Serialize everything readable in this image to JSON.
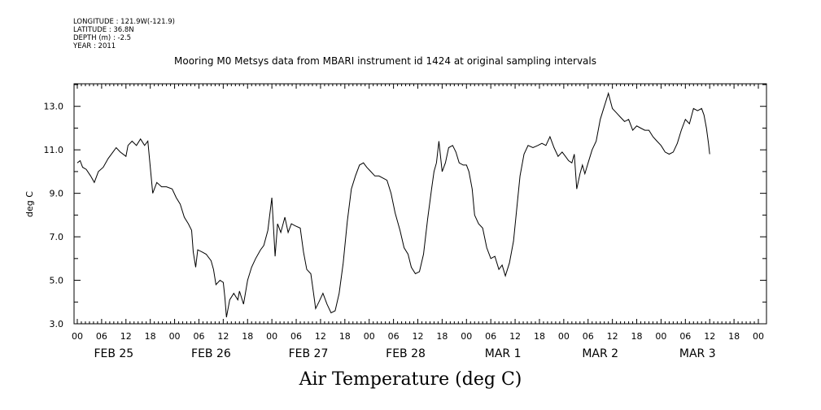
{
  "meta": {
    "longitude": "LONGITUDE : 121.9W(-121.9)",
    "latitude": "LATITUDE : 36.8N",
    "depth": "DEPTH (m) : -2.5",
    "year": "YEAR : 2011"
  },
  "title": "Mooring M0 Metsys data from MBARI instrument id 1424 at original sampling intervals",
  "bottom_title": "Air Temperature (deg C)",
  "chart_data": {
    "type": "line",
    "title": "Mooring M0 Metsys data from MBARI instrument id 1424 at original sampling intervals",
    "xlabel": "",
    "ylabel": "deg C",
    "ylim": [
      3.0,
      14.0
    ],
    "yticks": [
      "3.0",
      "5.0",
      "7.0",
      "9.0",
      "11.0",
      "13.0"
    ],
    "xlim_hours": [
      0,
      168
    ],
    "x_unit": "hours since 2011-02-25 00:00",
    "xtick_hour_labels": [
      "00",
      "06",
      "12",
      "18",
      "00",
      "06",
      "12",
      "18",
      "00",
      "06",
      "12",
      "18",
      "00",
      "06",
      "12",
      "18",
      "00",
      "06",
      "12",
      "18",
      "00",
      "06",
      "12",
      "18",
      "00",
      "06",
      "12",
      "18",
      "00"
    ],
    "date_labels": [
      "FEB 25",
      "FEB 26",
      "FEB 27",
      "FEB 28",
      "MAR 1",
      "MAR 2",
      "MAR 3"
    ],
    "grid": false,
    "series": [
      {
        "values": [
          [
            0,
            10.4
          ],
          [
            0.7,
            10.5
          ],
          [
            1.3,
            10.2
          ],
          [
            2.2,
            10.1
          ],
          [
            3.3,
            9.8
          ],
          [
            4.2,
            9.5
          ],
          [
            5.2,
            10.0
          ],
          [
            6.4,
            10.2
          ],
          [
            7.6,
            10.6
          ],
          [
            8.8,
            10.9
          ],
          [
            9.6,
            11.1
          ],
          [
            10.6,
            10.9
          ],
          [
            12.0,
            10.7
          ],
          [
            12.5,
            11.2
          ],
          [
            13.5,
            11.4
          ],
          [
            14.6,
            11.2
          ],
          [
            15.6,
            11.5
          ],
          [
            16.6,
            11.2
          ],
          [
            17.4,
            11.4
          ],
          [
            18.0,
            10.2
          ],
          [
            18.6,
            9.0
          ],
          [
            19.6,
            9.5
          ],
          [
            20.8,
            9.3
          ],
          [
            22.0,
            9.3
          ],
          [
            23.4,
            9.2
          ],
          [
            24.4,
            8.8
          ],
          [
            25.4,
            8.5
          ],
          [
            26.4,
            7.9
          ],
          [
            27.4,
            7.6
          ],
          [
            28.2,
            7.3
          ],
          [
            28.6,
            6.3
          ],
          [
            29.2,
            5.6
          ],
          [
            29.7,
            6.4
          ],
          [
            30.8,
            6.3
          ],
          [
            31.8,
            6.2
          ],
          [
            33.0,
            5.9
          ],
          [
            33.6,
            5.5
          ],
          [
            34.2,
            4.8
          ],
          [
            35.2,
            5.0
          ],
          [
            36.0,
            4.9
          ],
          [
            36.4,
            4.2
          ],
          [
            36.8,
            3.3
          ],
          [
            37.6,
            4.1
          ],
          [
            38.6,
            4.4
          ],
          [
            39.6,
            4.1
          ],
          [
            40.0,
            4.5
          ],
          [
            41.0,
            3.9
          ],
          [
            42.0,
            5.0
          ],
          [
            43.0,
            5.6
          ],
          [
            44.0,
            6.0
          ],
          [
            45.2,
            6.4
          ],
          [
            46.0,
            6.6
          ],
          [
            47.0,
            7.3
          ],
          [
            48.0,
            8.8
          ],
          [
            48.8,
            6.1
          ],
          [
            49.4,
            7.6
          ],
          [
            50.2,
            7.2
          ],
          [
            51.2,
            7.9
          ],
          [
            52.0,
            7.2
          ],
          [
            52.8,
            7.6
          ],
          [
            53.8,
            7.5
          ],
          [
            55.0,
            7.4
          ],
          [
            55.8,
            6.3
          ],
          [
            56.6,
            5.5
          ],
          [
            57.6,
            5.3
          ],
          [
            58.2,
            4.5
          ],
          [
            58.8,
            3.7
          ],
          [
            59.6,
            4.0
          ],
          [
            60.6,
            4.4
          ],
          [
            61.6,
            3.9
          ],
          [
            62.6,
            3.5
          ],
          [
            63.6,
            3.6
          ],
          [
            64.6,
            4.4
          ],
          [
            65.6,
            5.8
          ],
          [
            66.6,
            7.7
          ],
          [
            67.6,
            9.2
          ],
          [
            68.6,
            9.8
          ],
          [
            69.6,
            10.3
          ],
          [
            70.6,
            10.4
          ],
          [
            71.4,
            10.2
          ],
          [
            72.4,
            10.0
          ],
          [
            73.4,
            9.8
          ],
          [
            74.4,
            9.8
          ],
          [
            75.4,
            9.7
          ],
          [
            76.4,
            9.6
          ],
          [
            77.4,
            9.0
          ],
          [
            78.4,
            8.1
          ],
          [
            79.6,
            7.3
          ],
          [
            80.6,
            6.5
          ],
          [
            81.6,
            6.2
          ],
          [
            82.4,
            5.6
          ],
          [
            83.4,
            5.3
          ],
          [
            84.4,
            5.4
          ],
          [
            85.4,
            6.2
          ],
          [
            86.4,
            7.8
          ],
          [
            87.4,
            9.2
          ],
          [
            88.0,
            10.0
          ],
          [
            88.6,
            10.4
          ],
          [
            89.2,
            11.4
          ],
          [
            90.0,
            10.0
          ],
          [
            90.8,
            10.4
          ],
          [
            91.6,
            11.1
          ],
          [
            92.6,
            11.2
          ],
          [
            93.4,
            10.9
          ],
          [
            94.2,
            10.4
          ],
          [
            95.2,
            10.3
          ],
          [
            96.0,
            10.3
          ],
          [
            96.6,
            10.0
          ],
          [
            97.4,
            9.2
          ],
          [
            98.0,
            8.0
          ],
          [
            99.0,
            7.6
          ],
          [
            100.0,
            7.4
          ],
          [
            101.0,
            6.5
          ],
          [
            102.0,
            6.0
          ],
          [
            103.0,
            6.1
          ],
          [
            104.0,
            5.5
          ],
          [
            104.8,
            5.7
          ],
          [
            105.6,
            5.2
          ],
          [
            106.6,
            5.8
          ],
          [
            107.6,
            6.8
          ],
          [
            108.4,
            8.3
          ],
          [
            109.2,
            9.8
          ],
          [
            110.2,
            10.8
          ],
          [
            111.2,
            11.2
          ],
          [
            112.4,
            11.1
          ],
          [
            113.6,
            11.2
          ],
          [
            114.6,
            11.3
          ],
          [
            115.6,
            11.2
          ],
          [
            116.6,
            11.6
          ],
          [
            117.6,
            11.1
          ],
          [
            118.6,
            10.7
          ],
          [
            119.6,
            10.9
          ],
          [
            120.4,
            10.7
          ],
          [
            121.2,
            10.5
          ],
          [
            122.0,
            10.4
          ],
          [
            122.6,
            10.8
          ],
          [
            123.2,
            9.2
          ],
          [
            124.0,
            9.9
          ],
          [
            124.6,
            10.3
          ],
          [
            125.2,
            9.9
          ],
          [
            126.0,
            10.4
          ],
          [
            127.0,
            11.0
          ],
          [
            128.0,
            11.4
          ],
          [
            129.0,
            12.4
          ],
          [
            130.0,
            13.0
          ],
          [
            131.0,
            13.6
          ],
          [
            132.0,
            12.9
          ],
          [
            133.0,
            12.7
          ],
          [
            134.0,
            12.5
          ],
          [
            135.0,
            12.3
          ],
          [
            136.0,
            12.4
          ],
          [
            137.0,
            11.9
          ],
          [
            138.0,
            12.1
          ],
          [
            139.0,
            12.0
          ],
          [
            140.0,
            11.9
          ],
          [
            141.0,
            11.9
          ],
          [
            142.0,
            11.6
          ],
          [
            143.0,
            11.4
          ],
          [
            144.0,
            11.2
          ],
          [
            145.0,
            10.9
          ],
          [
            146.0,
            10.8
          ],
          [
            147.0,
            10.9
          ],
          [
            148.0,
            11.3
          ],
          [
            149.0,
            11.9
          ],
          [
            150.0,
            12.4
          ],
          [
            151.0,
            12.2
          ],
          [
            152.0,
            12.9
          ],
          [
            153.0,
            12.8
          ],
          [
            154.0,
            12.9
          ],
          [
            154.6,
            12.6
          ],
          [
            155.2,
            12.0
          ],
          [
            155.7,
            11.3
          ],
          [
            156.0,
            10.8
          ]
        ]
      }
    ]
  }
}
